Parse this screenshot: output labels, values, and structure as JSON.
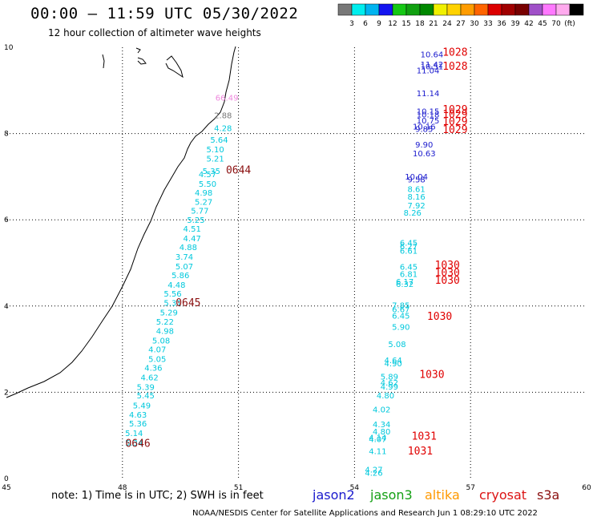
{
  "title": "00:00 – 11:59 UTC 05/30/2022",
  "subtitle": "12 hour collection of altimeter wave heights",
  "note": "note: 1) Time is in UTC; 2) SWH is in feet",
  "credit": "NOAA/NESDIS Center for Satellite Applications and Research   Jun  1 08:29:10 UTC 2022",
  "satellites": [
    {
      "name": "jason2",
      "color": "#1a1acd"
    },
    {
      "name": "jason3",
      "color": "#14a014"
    },
    {
      "name": "altika",
      "color": "#ff9900"
    },
    {
      "name": "cryosat",
      "color": "#dc1414"
    },
    {
      "name": "s3a",
      "color": "#8b1010"
    }
  ],
  "colorbar": {
    "colors": [
      "#787878",
      "#00eeee",
      "#00b4f0",
      "#1414f0",
      "#14c814",
      "#10a010",
      "#008800",
      "#f0f000",
      "#ffd200",
      "#ff9c00",
      "#ff6400",
      "#dc0000",
      "#a00000",
      "#780000",
      "#a050c8",
      "#ff78ff",
      "#ffaaee",
      "#000000"
    ],
    "labels": [
      "3",
      "6",
      "9",
      "12",
      "15",
      "18",
      "21",
      "24",
      "27",
      "30",
      "33",
      "36",
      "39",
      "42",
      "45",
      "70",
      "(ft)"
    ]
  },
  "map": {
    "lon_ticks": [
      "45",
      "48",
      "51",
      "54",
      "57",
      "60"
    ],
    "lat_ticks": [
      "0",
      "2",
      "4",
      "6",
      "8",
      "10"
    ]
  },
  "chart_data": {
    "type": "scatter",
    "title": "00:00 – 11:59 UTC 05/30/2022",
    "subtitle": "12 hour collection of altimeter wave heights",
    "xlim": [
      45,
      60
    ],
    "ylim": [
      0,
      10
    ],
    "x_ticks": [
      45,
      48,
      51,
      54,
      57,
      60
    ],
    "y_ticks": [
      0,
      2,
      4,
      6,
      8,
      10
    ],
    "grid": true,
    "series": [
      {
        "name": "jason2",
        "color": "#1a1acd",
        "points": [
          {
            "x": 56.0,
            "y": 9.84,
            "v": "10.64"
          },
          {
            "x": 56.0,
            "y": 9.61,
            "v": "11.42"
          },
          {
            "x": 56.0,
            "y": 9.56,
            "v": "10.51"
          },
          {
            "x": 55.9,
            "y": 9.47,
            "v": "11.04"
          },
          {
            "x": 55.9,
            "y": 8.94,
            "v": "11.14"
          },
          {
            "x": 55.9,
            "y": 8.52,
            "v": "10.15"
          },
          {
            "x": 55.9,
            "y": 8.45,
            "v": "10.18"
          },
          {
            "x": 55.9,
            "y": 8.31,
            "v": "10.75"
          },
          {
            "x": 55.8,
            "y": 8.17,
            "v": "10.16"
          },
          {
            "x": 55.8,
            "y": 8.11,
            "v": "9.85"
          },
          {
            "x": 55.8,
            "y": 7.75,
            "v": "9.90"
          },
          {
            "x": 55.8,
            "y": 7.55,
            "v": "10.63"
          },
          {
            "x": 55.6,
            "y": 7.01,
            "v": "10.04"
          },
          {
            "x": 55.6,
            "y": 6.94,
            "v": "9.58"
          }
        ]
      },
      {
        "name": "jason3",
        "color": "#00c8dc",
        "points": [
          {
            "x": 50.6,
            "y": 8.13,
            "v": "4.28"
          },
          {
            "x": 50.5,
            "y": 7.86,
            "v": "5.64"
          },
          {
            "x": 50.4,
            "y": 7.64,
            "v": "5.10"
          },
          {
            "x": 50.4,
            "y": 7.43,
            "v": "5.21"
          },
          {
            "x": 50.3,
            "y": 7.14,
            "v": "5.35"
          },
          {
            "x": 50.2,
            "y": 7.06,
            "v": "4.57"
          },
          {
            "x": 50.2,
            "y": 6.84,
            "v": "5.50"
          },
          {
            "x": 50.1,
            "y": 6.64,
            "v": "4.98"
          },
          {
            "x": 50.1,
            "y": 6.42,
            "v": "5.27"
          },
          {
            "x": 50.0,
            "y": 6.22,
            "v": "5.77"
          },
          {
            "x": 49.9,
            "y": 6.0,
            "v": "5.25"
          },
          {
            "x": 49.8,
            "y": 5.8,
            "v": "4.51"
          },
          {
            "x": 49.8,
            "y": 5.58,
            "v": "4.47"
          },
          {
            "x": 49.7,
            "y": 5.37,
            "v": "4.88"
          },
          {
            "x": 49.6,
            "y": 5.15,
            "v": "3.74"
          },
          {
            "x": 49.6,
            "y": 4.93,
            "v": "5.07"
          },
          {
            "x": 49.5,
            "y": 4.72,
            "v": "5.86"
          },
          {
            "x": 49.4,
            "y": 4.5,
            "v": "4.48"
          },
          {
            "x": 49.3,
            "y": 4.29,
            "v": "5.56"
          },
          {
            "x": 49.3,
            "y": 4.08,
            "v": "5.31"
          },
          {
            "x": 49.2,
            "y": 3.86,
            "v": "5.29"
          },
          {
            "x": 49.1,
            "y": 3.64,
            "v": "5.22"
          },
          {
            "x": 49.1,
            "y": 3.43,
            "v": "4.98"
          },
          {
            "x": 49.0,
            "y": 3.21,
            "v": "5.08"
          },
          {
            "x": 48.9,
            "y": 3.0,
            "v": "4.07"
          },
          {
            "x": 48.9,
            "y": 2.78,
            "v": "5.05"
          },
          {
            "x": 48.8,
            "y": 2.57,
            "v": "4.36"
          },
          {
            "x": 48.7,
            "y": 2.35,
            "v": "4.62"
          },
          {
            "x": 48.6,
            "y": 2.13,
            "v": "5.39"
          },
          {
            "x": 48.6,
            "y": 1.93,
            "v": "5.45"
          },
          {
            "x": 48.5,
            "y": 1.7,
            "v": "5.49"
          },
          {
            "x": 48.4,
            "y": 1.49,
            "v": "4.63"
          },
          {
            "x": 48.4,
            "y": 1.28,
            "v": "5.36"
          },
          {
            "x": 48.3,
            "y": 1.06,
            "v": "5.14"
          },
          {
            "x": 48.3,
            "y": 0.84,
            "v": "5.34"
          },
          {
            "x": 55.4,
            "y": 5.47,
            "v": "6.45"
          },
          {
            "x": 55.4,
            "y": 5.39,
            "v": "6.27"
          },
          {
            "x": 55.4,
            "y": 5.29,
            "v": "6.61"
          },
          {
            "x": 55.4,
            "y": 4.92,
            "v": "6.45"
          },
          {
            "x": 55.4,
            "y": 4.75,
            "v": "6.81"
          },
          {
            "x": 55.3,
            "y": 4.57,
            "v": "6.17"
          },
          {
            "x": 55.3,
            "y": 4.52,
            "v": "6.32"
          },
          {
            "x": 55.2,
            "y": 4.02,
            "v": "7.85"
          },
          {
            "x": 55.2,
            "y": 3.93,
            "v": "6.67"
          },
          {
            "x": 55.2,
            "y": 3.78,
            "v": "6.45"
          },
          {
            "x": 55.2,
            "y": 3.52,
            "v": "5.90"
          },
          {
            "x": 55.1,
            "y": 3.12,
            "v": "5.08"
          },
          {
            "x": 55.0,
            "y": 2.75,
            "v": "4.64"
          },
          {
            "x": 55.0,
            "y": 2.68,
            "v": "4.90"
          },
          {
            "x": 54.9,
            "y": 2.37,
            "v": "5.89"
          },
          {
            "x": 54.9,
            "y": 2.23,
            "v": "4.62"
          },
          {
            "x": 54.9,
            "y": 2.14,
            "v": "4.99"
          },
          {
            "x": 54.8,
            "y": 1.93,
            "v": "4.80"
          },
          {
            "x": 54.7,
            "y": 1.61,
            "v": "4.02"
          },
          {
            "x": 54.7,
            "y": 1.26,
            "v": "4.34"
          },
          {
            "x": 54.7,
            "y": 1.1,
            "v": "4.80"
          },
          {
            "x": 54.6,
            "y": 0.96,
            "v": "4.14"
          },
          {
            "x": 54.6,
            "y": 0.92,
            "v": "4.07"
          },
          {
            "x": 54.6,
            "y": 0.64,
            "v": "4.11"
          },
          {
            "x": 54.5,
            "y": 0.21,
            "v": "4.27"
          },
          {
            "x": 54.5,
            "y": 0.14,
            "v": "4.26"
          },
          {
            "x": 55.6,
            "y": 6.72,
            "v": "8.61"
          },
          {
            "x": 55.6,
            "y": 6.54,
            "v": "8.16"
          },
          {
            "x": 55.6,
            "y": 6.34,
            "v": "7.92"
          },
          {
            "x": 55.5,
            "y": 6.17,
            "v": "8.26"
          }
        ]
      },
      {
        "name": "altika",
        "color": "#787878",
        "points": [
          {
            "x": 50.6,
            "y": 8.43,
            "v": "2.88"
          }
        ]
      },
      {
        "name": "cryosat",
        "color": "#ee88dd",
        "points": [
          {
            "x": 50.7,
            "y": 8.84,
            "v": "66.49"
          }
        ]
      }
    ],
    "annotations": [
      {
        "x": 51.0,
        "y": 7.17,
        "text": "0644",
        "color": "#8b1010"
      },
      {
        "x": 49.7,
        "y": 4.09,
        "text": "0645",
        "color": "#8b1010"
      },
      {
        "x": 48.4,
        "y": 0.83,
        "text": "0646",
        "color": "#8b1010"
      },
      {
        "x": 56.6,
        "y": 9.9,
        "text": "1028",
        "color": "#e00000"
      },
      {
        "x": 56.6,
        "y": 9.57,
        "text": "1028",
        "color": "#e00000"
      },
      {
        "x": 56.6,
        "y": 8.57,
        "text": "1029",
        "color": "#e00000"
      },
      {
        "x": 56.6,
        "y": 8.46,
        "text": "1029",
        "color": "#e00000"
      },
      {
        "x": 56.6,
        "y": 8.29,
        "text": "1029",
        "color": "#e00000"
      },
      {
        "x": 56.6,
        "y": 8.1,
        "text": "1029",
        "color": "#e00000"
      },
      {
        "x": 56.4,
        "y": 4.96,
        "text": "1030",
        "color": "#e00000"
      },
      {
        "x": 56.4,
        "y": 4.79,
        "text": "1030",
        "color": "#e00000"
      },
      {
        "x": 56.4,
        "y": 4.61,
        "text": "1030",
        "color": "#e00000"
      },
      {
        "x": 56.2,
        "y": 3.77,
        "text": "1030",
        "color": "#e00000"
      },
      {
        "x": 56.0,
        "y": 2.43,
        "text": "1030",
        "color": "#e00000"
      },
      {
        "x": 55.8,
        "y": 0.99,
        "text": "1031",
        "color": "#e00000"
      },
      {
        "x": 55.7,
        "y": 0.65,
        "text": "1031",
        "color": "#e00000"
      }
    ]
  }
}
